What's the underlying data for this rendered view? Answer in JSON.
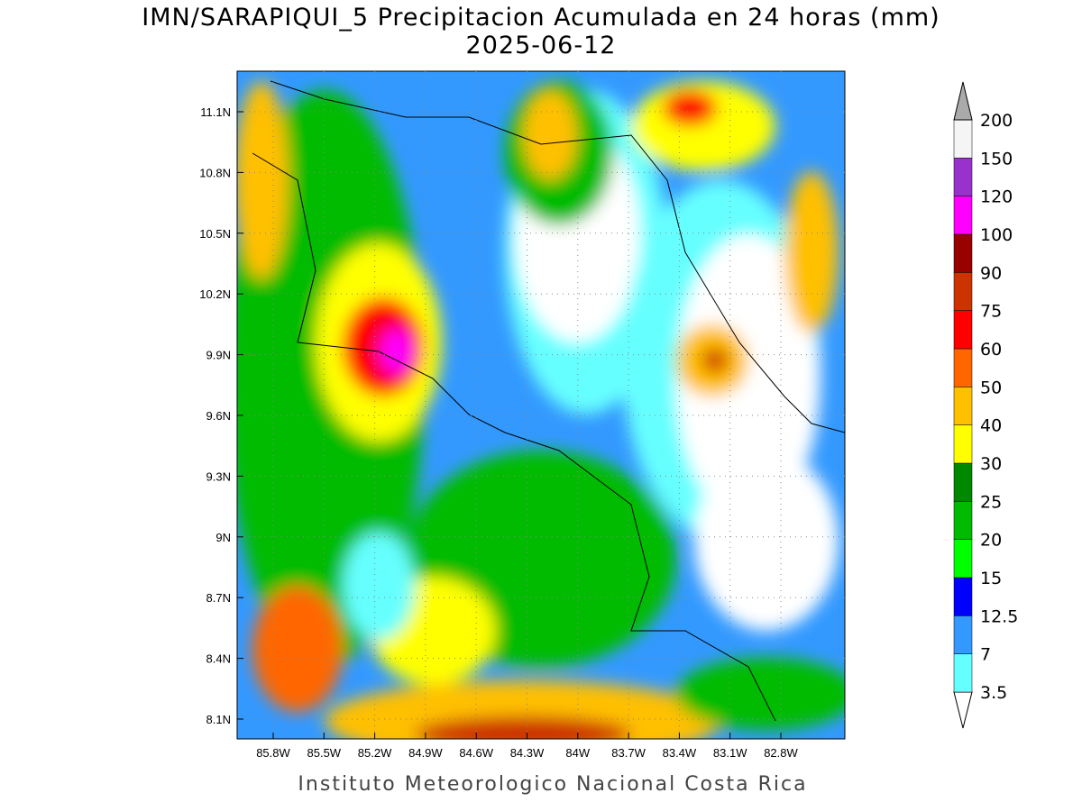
{
  "title": "IMN/SARAPIQUI_5 Precipitacion Acumulada en 24 horas (mm)",
  "subtitle": "2025-06-12",
  "map": {
    "lat_ticks": [
      "11.1N",
      "10.8N",
      "10.5N",
      "10.2N",
      "9.9N",
      "9.6N",
      "9.3N",
      "9N",
      "8.7N",
      "8.4N",
      "8.1N"
    ],
    "lon_ticks": [
      "85.8W",
      "85.5W",
      "85.2W",
      "84.9W",
      "84.6W",
      "84.3W",
      "84W",
      "83.7W",
      "83.4W",
      "83.1W",
      "82.8W"
    ]
  },
  "colorbar": {
    "levels": [
      3.5,
      7,
      12.5,
      15,
      20,
      25,
      30,
      40,
      50,
      60,
      75,
      90,
      100,
      120,
      150,
      200
    ],
    "colors": [
      "#ffffff",
      "#66ffff",
      "#3399ff",
      "#0000ff",
      "#00ff00",
      "#00bb00",
      "#008800",
      "#ffff00",
      "#ffc000",
      "#ff6600",
      "#ff0000",
      "#cc3300",
      "#990000",
      "#ff00ff",
      "#9932cc",
      "#f5f5f5",
      "#aaaaaa"
    ]
  },
  "footer": "Instituto Meteorologico Nacional Costa Rica"
}
